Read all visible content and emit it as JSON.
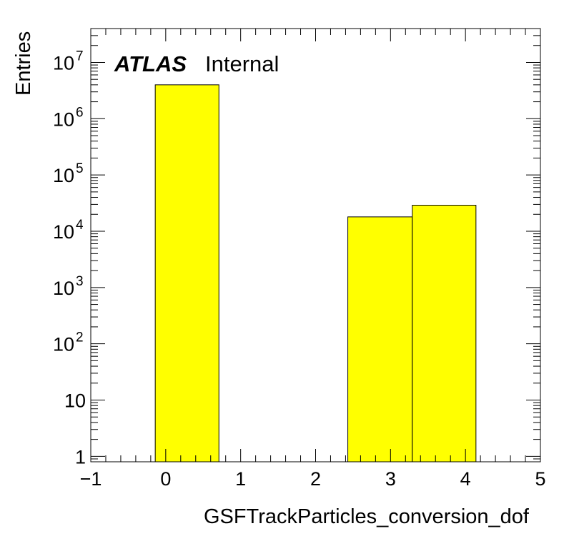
{
  "chart_data": {
    "type": "bar",
    "xlabel": "GSFTrackParticles_conversion_dof",
    "ylabel": "Entries",
    "annotation": {
      "bold": "ATLAS",
      "normal": "Internal"
    },
    "xlim": [
      -1,
      5
    ],
    "ylim": [
      0.8,
      40000000
    ],
    "yscale": "log",
    "bar_color": "#ffff00",
    "x_ticks": [
      {
        "v": -1,
        "label": "−1"
      },
      {
        "v": 0,
        "label": "0"
      },
      {
        "v": 1,
        "label": "1"
      },
      {
        "v": 2,
        "label": "2"
      },
      {
        "v": 3,
        "label": "3"
      },
      {
        "v": 4,
        "label": "4"
      },
      {
        "v": 5,
        "label": "5"
      }
    ],
    "y_ticks": [
      {
        "v": 1,
        "base": "1",
        "exp": ""
      },
      {
        "v": 10,
        "base": "10",
        "exp": ""
      },
      {
        "v": 100,
        "base": "10",
        "exp": "2"
      },
      {
        "v": 1000,
        "base": "10",
        "exp": "3"
      },
      {
        "v": 10000,
        "base": "10",
        "exp": "4"
      },
      {
        "v": 100000,
        "base": "10",
        "exp": "5"
      },
      {
        "v": 1000000,
        "base": "10",
        "exp": "6"
      },
      {
        "v": 10000000,
        "base": "10",
        "exp": "7"
      }
    ],
    "bins": [
      {
        "lo": -0.14,
        "hi": 0.71,
        "value": 4000000
      },
      {
        "lo": 2.43,
        "hi": 3.29,
        "value": 18000
      },
      {
        "lo": 3.29,
        "hi": 4.14,
        "value": 29000
      }
    ]
  }
}
